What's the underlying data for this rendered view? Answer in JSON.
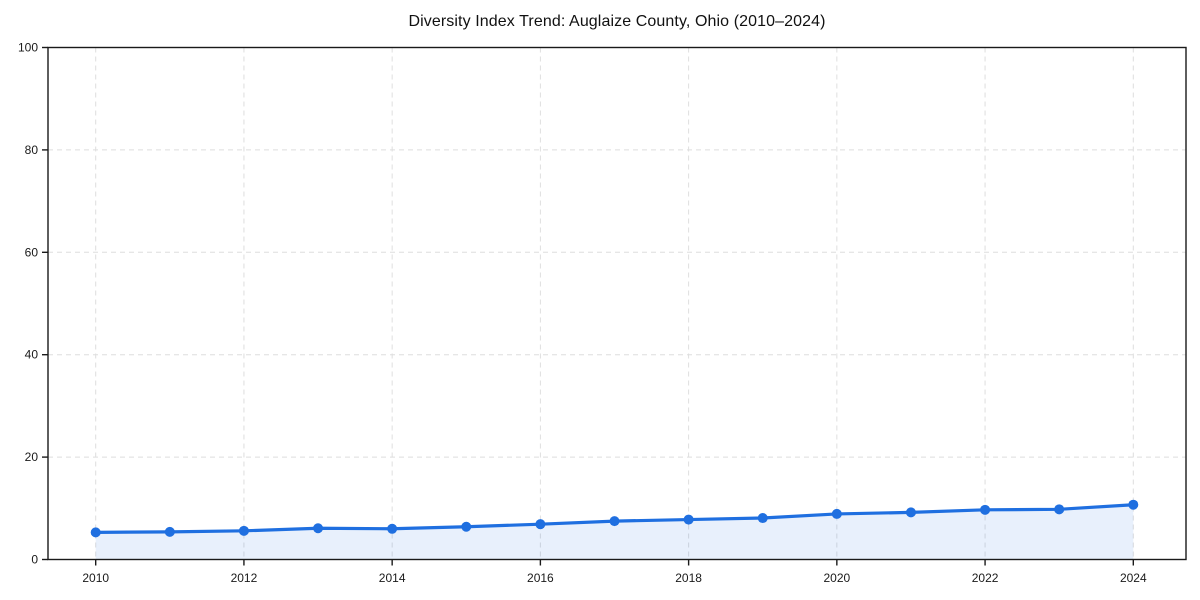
{
  "figure": {
    "background": "#ffffff"
  },
  "chart_data": {
    "type": "area",
    "title": "Diversity Index Trend: Auglaize County, Ohio (2010–2024)",
    "x": [
      2010,
      2011,
      2012,
      2013,
      2014,
      2015,
      2016,
      2017,
      2018,
      2019,
      2020,
      2021,
      2022,
      2023,
      2024
    ],
    "values": [
      5.3,
      5.4,
      5.6,
      6.1,
      6.0,
      6.4,
      6.9,
      7.5,
      7.8,
      8.1,
      8.9,
      9.2,
      9.7,
      9.8,
      10.7
    ],
    "xlabel": "",
    "ylabel": "",
    "ylim": [
      0,
      100
    ],
    "yticks": [
      0,
      20,
      40,
      60,
      80,
      100
    ],
    "xticks": [
      2010,
      2012,
      2014,
      2016,
      2018,
      2020,
      2022,
      2024
    ],
    "grid": true,
    "grid_style": "dashed",
    "legend_position": "none",
    "line_color": "#1f6fe0",
    "marker_color": "#1f6fe0",
    "fill_color": "rgba(31,111,224,0.10)",
    "grid_color": "#dedede",
    "spine_color": "#1a1a1a",
    "tick_label_color": "#1a1a1a"
  }
}
